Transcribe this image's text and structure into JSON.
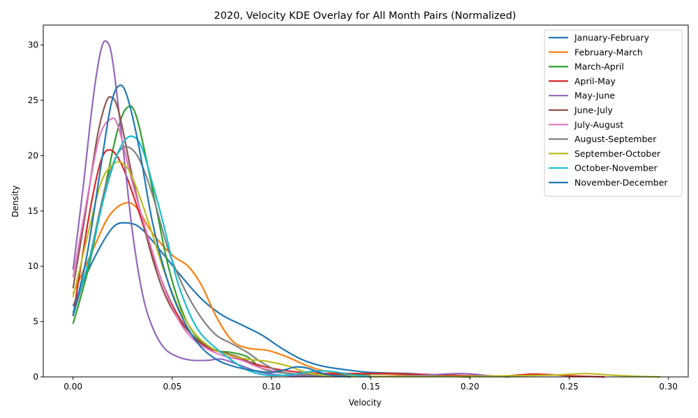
{
  "chart_data": {
    "type": "line",
    "title": "2020, Velocity KDE Overlay for All Month Pairs (Normalized)",
    "xlabel": "Velocity",
    "ylabel": "Density",
    "xlim": [
      -0.015,
      0.31
    ],
    "ylim": [
      0,
      31.8
    ],
    "x_ticks": [
      0.0,
      0.05,
      0.1,
      0.15,
      0.2,
      0.25,
      0.3
    ],
    "x_tick_labels": [
      "0.00",
      "0.05",
      "0.10",
      "0.15",
      "0.20",
      "0.25",
      "0.30"
    ],
    "y_ticks": [
      0,
      5,
      10,
      15,
      20,
      25,
      30
    ],
    "y_tick_labels": [
      "0",
      "5",
      "10",
      "15",
      "20",
      "25",
      "30"
    ],
    "grid": false,
    "legend_position": "top-right",
    "series": [
      {
        "name": "January-February",
        "color": "#1f77b4",
        "points": [
          [
            0,
            6.4
          ],
          [
            0.01,
            10.5
          ],
          [
            0.02,
            13.5
          ],
          [
            0.028,
            13.9
          ],
          [
            0.035,
            13.3
          ],
          [
            0.045,
            11.2
          ],
          [
            0.055,
            9.0
          ],
          [
            0.065,
            7.0
          ],
          [
            0.075,
            5.6
          ],
          [
            0.085,
            4.7
          ],
          [
            0.095,
            3.8
          ],
          [
            0.105,
            2.6
          ],
          [
            0.115,
            1.6
          ],
          [
            0.125,
            1.0
          ],
          [
            0.135,
            0.7
          ],
          [
            0.15,
            0.4
          ],
          [
            0.17,
            0.3
          ],
          [
            0.185,
            0.1
          ],
          [
            0.2,
            0.05
          ]
        ]
      },
      {
        "name": "February-March",
        "color": "#ff7f0e",
        "points": [
          [
            0,
            7.5
          ],
          [
            0.01,
            11.5
          ],
          [
            0.018,
            14.5
          ],
          [
            0.026,
            15.7
          ],
          [
            0.032,
            15.3
          ],
          [
            0.04,
            13.0
          ],
          [
            0.05,
            11.0
          ],
          [
            0.058,
            10.0
          ],
          [
            0.065,
            8.2
          ],
          [
            0.072,
            5.5
          ],
          [
            0.08,
            3.3
          ],
          [
            0.088,
            2.6
          ],
          [
            0.098,
            2.4
          ],
          [
            0.108,
            1.8
          ],
          [
            0.118,
            1.0
          ],
          [
            0.128,
            0.5
          ],
          [
            0.14,
            0.3
          ],
          [
            0.16,
            0.25
          ],
          [
            0.18,
            0.1
          ],
          [
            0.2,
            0.0
          ]
        ]
      },
      {
        "name": "March-April",
        "color": "#2ca02c",
        "points": [
          [
            0,
            4.8
          ],
          [
            0.008,
            10.0
          ],
          [
            0.016,
            17.0
          ],
          [
            0.022,
            22.0
          ],
          [
            0.027,
            24.3
          ],
          [
            0.032,
            23.5
          ],
          [
            0.04,
            17.0
          ],
          [
            0.048,
            10.0
          ],
          [
            0.056,
            5.5
          ],
          [
            0.064,
            3.3
          ],
          [
            0.072,
            2.4
          ],
          [
            0.08,
            2.2
          ],
          [
            0.088,
            1.8
          ],
          [
            0.096,
            0.7
          ],
          [
            0.11,
            0.3
          ],
          [
            0.13,
            0.2
          ],
          [
            0.16,
            0.3
          ],
          [
            0.18,
            0.15
          ],
          [
            0.2,
            0.0
          ]
        ]
      },
      {
        "name": "April-May",
        "color": "#d62728",
        "points": [
          [
            0,
            5.5
          ],
          [
            0.008,
            14.5
          ],
          [
            0.014,
            19.5
          ],
          [
            0.019,
            20.5
          ],
          [
            0.025,
            19.0
          ],
          [
            0.033,
            15.0
          ],
          [
            0.042,
            10.0
          ],
          [
            0.05,
            6.5
          ],
          [
            0.058,
            4.2
          ],
          [
            0.066,
            2.8
          ],
          [
            0.075,
            2.2
          ],
          [
            0.085,
            1.6
          ],
          [
            0.095,
            1.0
          ],
          [
            0.11,
            0.5
          ],
          [
            0.13,
            0.3
          ],
          [
            0.16,
            0.3
          ],
          [
            0.2,
            0.1
          ],
          [
            0.215,
            0.05
          ],
          [
            0.232,
            0.25
          ],
          [
            0.25,
            0.1
          ],
          [
            0.268,
            0.0
          ]
        ]
      },
      {
        "name": "May-June",
        "color": "#9467bd",
        "points": [
          [
            0,
            9.7
          ],
          [
            0.005,
            17.0
          ],
          [
            0.01,
            25.0
          ],
          [
            0.014,
            29.5
          ],
          [
            0.017,
            30.3
          ],
          [
            0.02,
            28.5
          ],
          [
            0.025,
            21.0
          ],
          [
            0.03,
            13.0
          ],
          [
            0.035,
            7.5
          ],
          [
            0.04,
            4.5
          ],
          [
            0.046,
            2.6
          ],
          [
            0.053,
            1.8
          ],
          [
            0.06,
            1.5
          ],
          [
            0.068,
            1.5
          ],
          [
            0.075,
            1.6
          ],
          [
            0.085,
            1.0
          ],
          [
            0.095,
            0.4
          ],
          [
            0.11,
            0.1
          ],
          [
            0.14,
            0.05
          ],
          [
            0.17,
            0.1
          ],
          [
            0.195,
            0.3
          ],
          [
            0.21,
            0.1
          ],
          [
            0.22,
            0.0
          ]
        ]
      },
      {
        "name": "June-July",
        "color": "#8c564b",
        "points": [
          [
            0,
            8.0
          ],
          [
            0.006,
            14.5
          ],
          [
            0.012,
            21.5
          ],
          [
            0.016,
            24.5
          ],
          [
            0.019,
            25.3
          ],
          [
            0.023,
            24.0
          ],
          [
            0.03,
            18.0
          ],
          [
            0.038,
            12.0
          ],
          [
            0.045,
            8.0
          ],
          [
            0.052,
            5.5
          ],
          [
            0.06,
            3.8
          ],
          [
            0.068,
            2.7
          ],
          [
            0.076,
            2.2
          ],
          [
            0.085,
            1.7
          ],
          [
            0.095,
            0.8
          ],
          [
            0.11,
            0.3
          ],
          [
            0.13,
            0.15
          ],
          [
            0.15,
            0.1
          ]
        ]
      },
      {
        "name": "July-August",
        "color": "#e377c2",
        "points": [
          [
            0,
            9.0
          ],
          [
            0.006,
            15.0
          ],
          [
            0.013,
            21.5
          ],
          [
            0.019,
            23.3
          ],
          [
            0.023,
            22.5
          ],
          [
            0.03,
            17.5
          ],
          [
            0.038,
            12.5
          ],
          [
            0.045,
            8.5
          ],
          [
            0.053,
            5.2
          ],
          [
            0.06,
            3.5
          ],
          [
            0.068,
            2.5
          ],
          [
            0.076,
            1.9
          ],
          [
            0.085,
            1.5
          ],
          [
            0.095,
            0.8
          ],
          [
            0.11,
            0.3
          ],
          [
            0.13,
            0.1
          ],
          [
            0.15,
            0.05
          ]
        ]
      },
      {
        "name": "August-September",
        "color": "#7f7f7f",
        "points": [
          [
            0,
            5.5
          ],
          [
            0.008,
            10.5
          ],
          [
            0.016,
            17.0
          ],
          [
            0.022,
            20.0
          ],
          [
            0.027,
            20.8
          ],
          [
            0.033,
            19.8
          ],
          [
            0.04,
            16.5
          ],
          [
            0.048,
            11.5
          ],
          [
            0.056,
            8.0
          ],
          [
            0.064,
            5.5
          ],
          [
            0.072,
            3.8
          ],
          [
            0.08,
            3.0
          ],
          [
            0.088,
            2.2
          ],
          [
            0.096,
            1.2
          ],
          [
            0.106,
            0.4
          ],
          [
            0.12,
            0.15
          ],
          [
            0.14,
            0.05
          ]
        ]
      },
      {
        "name": "September-October",
        "color": "#bcbd22",
        "points": [
          [
            0,
            7.2
          ],
          [
            0.007,
            12.5
          ],
          [
            0.014,
            17.5
          ],
          [
            0.02,
            19.2
          ],
          [
            0.025,
            19.3
          ],
          [
            0.03,
            18.0
          ],
          [
            0.038,
            14.0
          ],
          [
            0.046,
            9.5
          ],
          [
            0.054,
            6.0
          ],
          [
            0.062,
            3.8
          ],
          [
            0.07,
            2.6
          ],
          [
            0.078,
            2.0
          ],
          [
            0.088,
            1.6
          ],
          [
            0.098,
            1.4
          ],
          [
            0.108,
            1.0
          ],
          [
            0.118,
            0.4
          ],
          [
            0.13,
            0.1
          ],
          [
            0.15,
            0.05
          ],
          [
            0.2,
            0.05
          ],
          [
            0.24,
            0.15
          ],
          [
            0.258,
            0.3
          ],
          [
            0.272,
            0.15
          ],
          [
            0.285,
            0.05
          ],
          [
            0.296,
            0.0
          ]
        ]
      },
      {
        "name": "October-November",
        "color": "#17becf",
        "points": [
          [
            0,
            5.8
          ],
          [
            0.008,
            10.5
          ],
          [
            0.016,
            16.5
          ],
          [
            0.022,
            20.0
          ],
          [
            0.028,
            21.7
          ],
          [
            0.034,
            21.0
          ],
          [
            0.04,
            17.5
          ],
          [
            0.046,
            13.5
          ],
          [
            0.052,
            9.0
          ],
          [
            0.058,
            6.0
          ],
          [
            0.064,
            4.0
          ],
          [
            0.072,
            2.6
          ],
          [
            0.08,
            1.5
          ],
          [
            0.088,
            0.6
          ],
          [
            0.098,
            0.15
          ],
          [
            0.11,
            0.2
          ],
          [
            0.12,
            0.5
          ],
          [
            0.13,
            0.5
          ],
          [
            0.14,
            0.2
          ],
          [
            0.15,
            0.0
          ]
        ]
      },
      {
        "name": "November-December",
        "color": "#1f77b4",
        "points": [
          [
            0,
            5.5
          ],
          [
            0.007,
            11.0
          ],
          [
            0.014,
            19.0
          ],
          [
            0.019,
            24.5
          ],
          [
            0.023,
            26.3
          ],
          [
            0.027,
            25.5
          ],
          [
            0.033,
            21.0
          ],
          [
            0.04,
            14.0
          ],
          [
            0.048,
            8.5
          ],
          [
            0.056,
            5.0
          ],
          [
            0.064,
            2.8
          ],
          [
            0.072,
            1.6
          ],
          [
            0.08,
            1.0
          ],
          [
            0.09,
            0.6
          ],
          [
            0.1,
            0.4
          ],
          [
            0.108,
            0.7
          ],
          [
            0.112,
            0.9
          ],
          [
            0.118,
            0.8
          ],
          [
            0.128,
            0.2
          ],
          [
            0.14,
            0.0
          ]
        ]
      }
    ]
  }
}
